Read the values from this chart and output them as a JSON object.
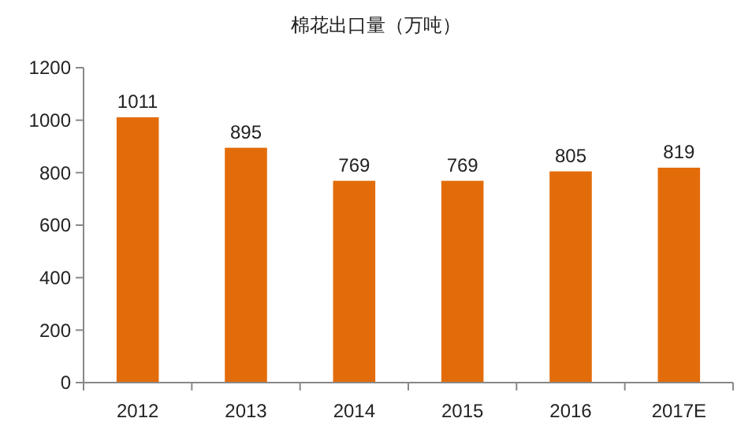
{
  "chart_data": {
    "type": "bar",
    "title": "棉花出口量（万吨）",
    "categories": [
      "2012",
      "2013",
      "2014",
      "2015",
      "2016",
      "2017E"
    ],
    "values": [
      1011,
      895,
      769,
      769,
      805,
      819
    ],
    "color": "#e36c0a",
    "ylim": [
      0,
      1200
    ],
    "yticks": [
      0,
      200,
      400,
      600,
      800,
      1000,
      1200
    ],
    "data_labels": true,
    "grid": false
  }
}
